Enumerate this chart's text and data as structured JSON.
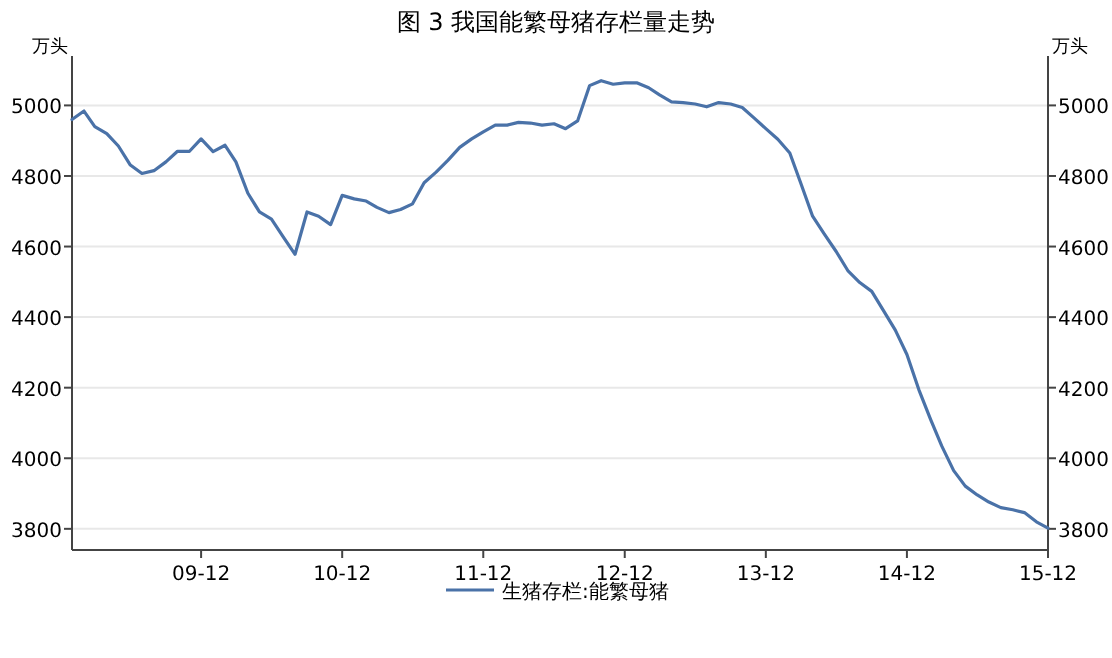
{
  "chart_data": {
    "type": "line",
    "title": "图 3  我国能繁母猪存栏量走势",
    "ylabel": "万头",
    "y2label": "万头",
    "x": [
      "2009-01",
      "2009-02",
      "2009-03",
      "2009-04",
      "2009-05",
      "2009-06",
      "2009-07",
      "2009-08",
      "2009-09",
      "2009-10",
      "2009-11",
      "2009-12",
      "2010-01",
      "2010-02",
      "2010-03",
      "2010-04",
      "2010-05",
      "2010-06",
      "2010-07",
      "2010-08",
      "2010-09",
      "2010-10",
      "2010-11",
      "2010-12",
      "2011-01",
      "2011-02",
      "2011-03",
      "2011-04",
      "2011-05",
      "2011-06",
      "2011-07",
      "2011-08",
      "2011-09",
      "2011-10",
      "2011-11",
      "2011-12",
      "2012-01",
      "2012-02",
      "2012-03",
      "2012-04",
      "2012-05",
      "2012-06",
      "2012-07",
      "2012-08",
      "2012-09",
      "2012-10",
      "2012-11",
      "2012-12",
      "2013-01",
      "2013-02",
      "2013-03",
      "2013-04",
      "2013-05",
      "2013-06",
      "2013-07",
      "2013-08",
      "2013-09",
      "2013-10",
      "2013-11",
      "2013-12",
      "2014-01",
      "2014-02",
      "2014-03",
      "2014-04",
      "2014-05",
      "2014-06",
      "2014-07",
      "2014-08",
      "2014-09",
      "2014-10",
      "2014-11",
      "2014-12",
      "2015-01",
      "2015-02",
      "2015-03",
      "2015-04",
      "2015-05",
      "2015-06",
      "2015-07",
      "2015-08",
      "2015-09",
      "2015-10",
      "2015-11",
      "2015-12"
    ],
    "series": [
      {
        "name": "生猪存栏:能繁母猪",
        "color": "#4a72a8",
        "values": [
          4960,
          4984,
          4940,
          4920,
          4885,
          4831,
          4807,
          4815,
          4840,
          4870,
          4870,
          4905,
          4869,
          4887,
          4840,
          4751,
          4698,
          4678,
          4628,
          4578,
          4698,
          4686,
          4662,
          4745,
          4735,
          4729,
          4711,
          4696,
          4705,
          4721,
          4781,
          4811,
          4845,
          4881,
          4905,
          4925,
          4944,
          4944,
          4952,
          4950,
          4944,
          4948,
          4934,
          4956,
          5056,
          5070,
          5060,
          5064,
          5064,
          5050,
          5030,
          5010,
          5008,
          5004,
          4996,
          5008,
          5004,
          4994,
          4964,
          4934,
          4904,
          4865,
          4781,
          4686,
          4636,
          4586,
          4532,
          4498,
          4473,
          4419,
          4363,
          4294,
          4194,
          4108,
          4035,
          3965,
          3921,
          3896,
          3876,
          3860,
          3854,
          3846,
          3820,
          3802
        ]
      }
    ],
    "xlim": [
      "2009-01",
      "2015-12"
    ],
    "xticks": [
      {
        "value": "2009-12",
        "label": "09-12"
      },
      {
        "value": "2010-12",
        "label": "10-12"
      },
      {
        "value": "2011-12",
        "label": "11-12"
      },
      {
        "value": "2012-12",
        "label": "12-12"
      },
      {
        "value": "2013-12",
        "label": "13-12"
      },
      {
        "value": "2014-12",
        "label": "14-12"
      },
      {
        "value": "2015-12",
        "label": "15-12"
      }
    ],
    "ylim": [
      3740,
      5140
    ],
    "yticks": [
      3800,
      4000,
      4200,
      4400,
      4600,
      4800,
      5000
    ],
    "y2lim": [
      3740,
      5140
    ],
    "y2ticks": [
      3800,
      4000,
      4200,
      4400,
      4600,
      4800,
      5000
    ],
    "grid": "y",
    "legend": "bottom",
    "line_style": "solid",
    "marker": "none"
  }
}
